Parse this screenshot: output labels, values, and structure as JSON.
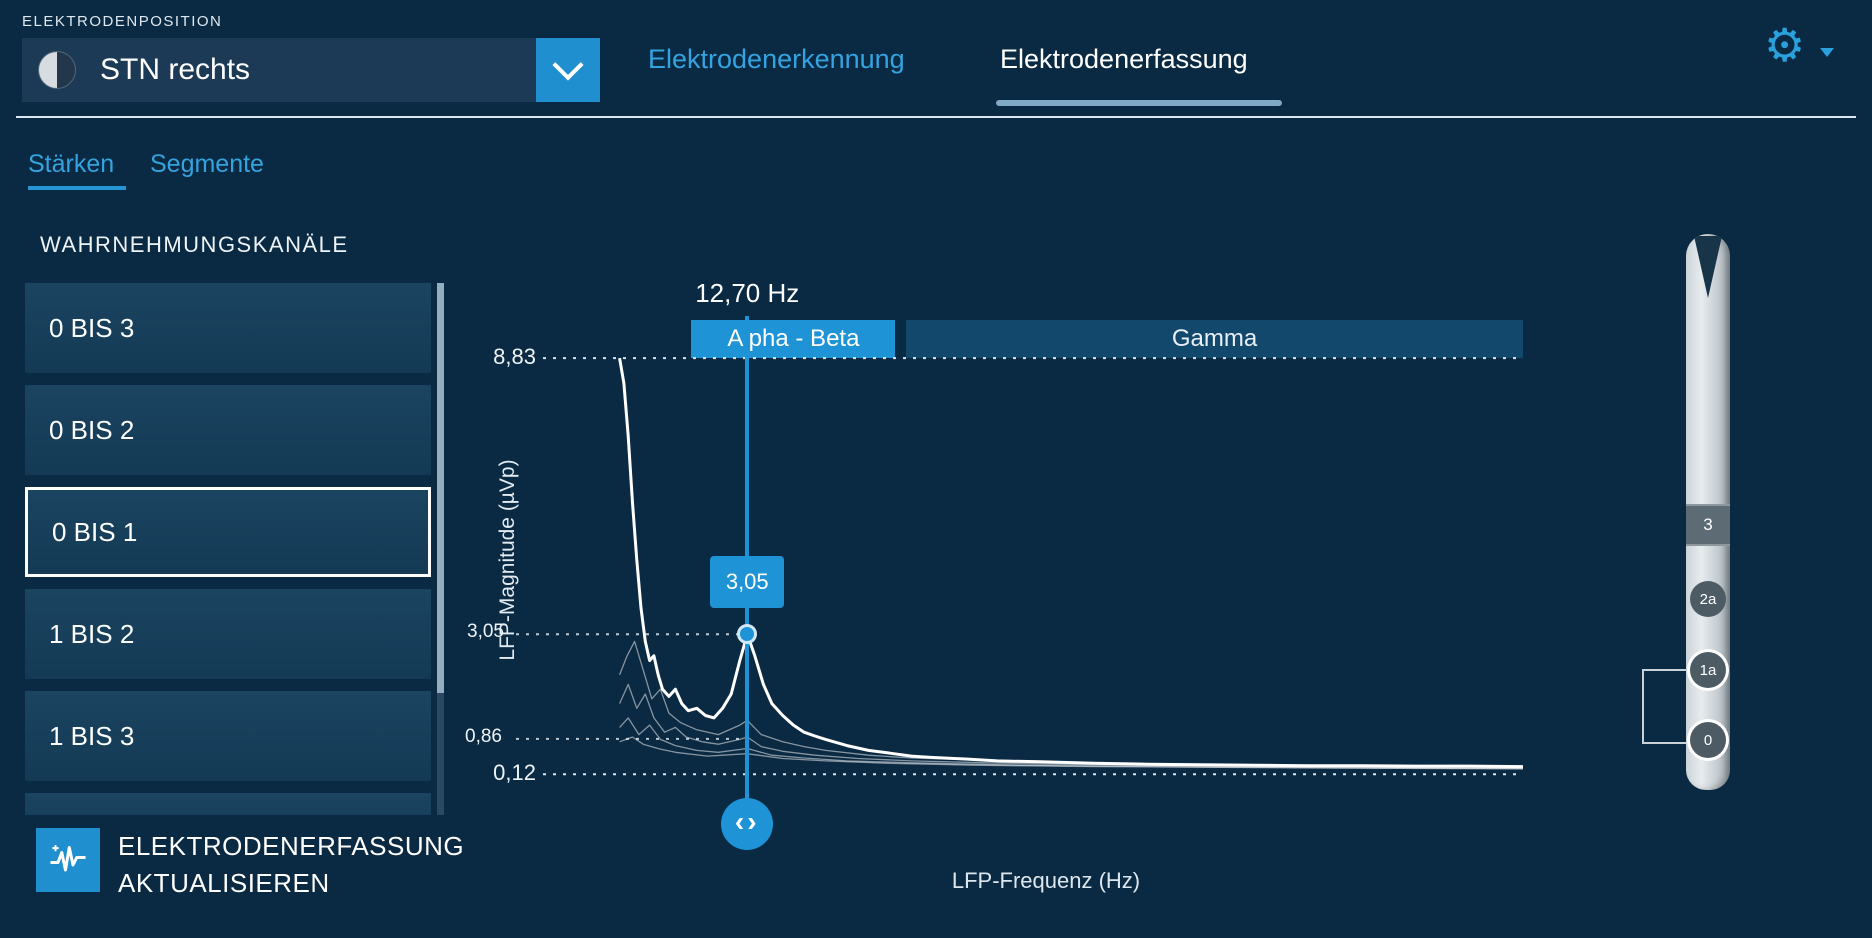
{
  "header": {
    "electrode_position_label": "ELEKTRODENPOSITION",
    "position_select": {
      "value": "STN rechts",
      "icon": "hemisphere-icon"
    },
    "tabs": [
      {
        "label": "Elektrodenerkennung",
        "active": false
      },
      {
        "label": "Elektrodenerfassung",
        "active": true
      }
    ],
    "settings_icon": "gear-icon"
  },
  "subtabs": [
    {
      "label": "Stärken",
      "active": true
    },
    {
      "label": "Segmente",
      "active": false
    }
  ],
  "sidebar": {
    "heading": "WAHRNEHMUNGSKANÄLE",
    "channels": [
      {
        "label": "0 BIS 3",
        "selected": false
      },
      {
        "label": "0 BIS 2",
        "selected": false
      },
      {
        "label": "0 BIS 1",
        "selected": true
      },
      {
        "label": "1 BIS 2",
        "selected": false
      },
      {
        "label": "1 BIS 3",
        "selected": false
      }
    ]
  },
  "update_button": {
    "icon": "waveform-icon",
    "line1": "ELEKTRODENERFASSUNG",
    "line2": "AKTUALISIEREN"
  },
  "chart_data": {
    "type": "line",
    "title": "",
    "xlabel": "LFP-Frequenz (Hz)",
    "ylabel": "LFP-Magnitude (µVp)",
    "x_range_hz": [
      0,
      85
    ],
    "ylim": [
      0,
      9.0
    ],
    "grid": "dashed-reference-lines",
    "y_ticks": [
      8.83,
      3.05,
      0.86,
      0.12
    ],
    "y_tick_labels": [
      "8,83",
      "3,05",
      "0,86",
      "0,12"
    ],
    "bands": [
      {
        "label": "Alpha - Beta",
        "from_hz": 7.5,
        "to_hz": 26.5,
        "style": "active",
        "color": "#1e93d6"
      },
      {
        "label": "Gamma",
        "from_hz": 27.5,
        "to_hz": 85,
        "style": "muted",
        "color": "#12486c"
      }
    ],
    "marker": {
      "hz": 12.7,
      "hz_label": "12,70 Hz",
      "value": 3.05,
      "value_label": "3,05"
    },
    "series": [
      {
        "name": "selected-channel-0-bis-1",
        "emphasis": "primary",
        "points": [
          [
            0.8,
            8.83
          ],
          [
            1.2,
            8.3
          ],
          [
            1.6,
            7.2
          ],
          [
            2.0,
            5.8
          ],
          [
            2.4,
            4.6
          ],
          [
            2.8,
            3.6
          ],
          [
            3.2,
            2.9
          ],
          [
            3.6,
            2.5
          ],
          [
            4.0,
            2.6
          ],
          [
            4.4,
            2.2
          ],
          [
            4.8,
            1.9
          ],
          [
            5.4,
            1.75
          ],
          [
            6.0,
            1.9
          ],
          [
            6.6,
            1.6
          ],
          [
            7.2,
            1.45
          ],
          [
            8.0,
            1.5
          ],
          [
            8.8,
            1.35
          ],
          [
            9.6,
            1.3
          ],
          [
            10.4,
            1.5
          ],
          [
            11.2,
            1.8
          ],
          [
            12.0,
            2.5
          ],
          [
            12.7,
            3.05
          ],
          [
            13.4,
            2.6
          ],
          [
            14.2,
            2.0
          ],
          [
            15.0,
            1.6
          ],
          [
            16,
            1.35
          ],
          [
            17,
            1.15
          ],
          [
            18,
            1.0
          ],
          [
            19,
            0.92
          ],
          [
            20,
            0.85
          ],
          [
            22,
            0.72
          ],
          [
            24,
            0.62
          ],
          [
            26,
            0.56
          ],
          [
            28,
            0.5
          ],
          [
            30,
            0.47
          ],
          [
            33,
            0.44
          ],
          [
            36,
            0.4
          ],
          [
            40,
            0.38
          ],
          [
            45,
            0.35
          ],
          [
            50,
            0.33
          ],
          [
            55,
            0.32
          ],
          [
            60,
            0.31
          ],
          [
            65,
            0.3
          ],
          [
            70,
            0.3
          ],
          [
            75,
            0.29
          ],
          [
            80,
            0.29
          ],
          [
            85,
            0.28
          ]
        ]
      },
      {
        "name": "channel-b",
        "emphasis": "secondary",
        "points": [
          [
            0.8,
            2.2
          ],
          [
            1.5,
            2.6
          ],
          [
            2.2,
            2.9
          ],
          [
            3.0,
            2.3
          ],
          [
            3.8,
            1.7
          ],
          [
            4.6,
            1.9
          ],
          [
            5.4,
            1.4
          ],
          [
            6.5,
            1.2
          ],
          [
            8,
            1.05
          ],
          [
            10,
            0.95
          ],
          [
            12,
            1.15
          ],
          [
            12.7,
            1.25
          ],
          [
            14,
            0.95
          ],
          [
            16,
            0.8
          ],
          [
            18,
            0.7
          ],
          [
            20,
            0.62
          ],
          [
            24,
            0.52
          ],
          [
            28,
            0.46
          ],
          [
            34,
            0.42
          ],
          [
            40,
            0.38
          ],
          [
            50,
            0.34
          ],
          [
            60,
            0.31
          ],
          [
            70,
            0.29
          ],
          [
            85,
            0.27
          ]
        ]
      },
      {
        "name": "channel-c",
        "emphasis": "secondary",
        "points": [
          [
            0.8,
            1.6
          ],
          [
            1.6,
            2.0
          ],
          [
            2.4,
            1.5
          ],
          [
            3.2,
            1.8
          ],
          [
            4.0,
            1.3
          ],
          [
            5,
            1.0
          ],
          [
            6,
            1.1
          ],
          [
            7,
            0.9
          ],
          [
            8.5,
            0.8
          ],
          [
            10,
            0.75
          ],
          [
            12,
            0.85
          ],
          [
            12.7,
            0.9
          ],
          [
            14,
            0.7
          ],
          [
            16,
            0.6
          ],
          [
            19,
            0.52
          ],
          [
            23,
            0.45
          ],
          [
            28,
            0.4
          ],
          [
            35,
            0.36
          ],
          [
            45,
            0.32
          ],
          [
            55,
            0.3
          ],
          [
            70,
            0.27
          ],
          [
            85,
            0.25
          ]
        ]
      },
      {
        "name": "channel-d",
        "emphasis": "secondary",
        "points": [
          [
            0.8,
            1.1
          ],
          [
            1.6,
            1.3
          ],
          [
            2.6,
            0.95
          ],
          [
            3.6,
            1.15
          ],
          [
            4.6,
            0.85
          ],
          [
            6,
            0.72
          ],
          [
            8,
            0.62
          ],
          [
            10,
            0.58
          ],
          [
            12.7,
            0.66
          ],
          [
            15,
            0.52
          ],
          [
            18,
            0.46
          ],
          [
            22,
            0.4
          ],
          [
            28,
            0.36
          ],
          [
            36,
            0.32
          ],
          [
            46,
            0.29
          ],
          [
            58,
            0.27
          ],
          [
            72,
            0.25
          ],
          [
            85,
            0.24
          ]
        ]
      },
      {
        "name": "channel-e",
        "emphasis": "secondary",
        "points": [
          [
            0.8,
            0.8
          ],
          [
            2,
            0.9
          ],
          [
            3,
            0.75
          ],
          [
            4.5,
            0.65
          ],
          [
            6,
            0.58
          ],
          [
            9,
            0.5
          ],
          [
            12.7,
            0.55
          ],
          [
            16,
            0.45
          ],
          [
            20,
            0.4
          ],
          [
            26,
            0.35
          ],
          [
            34,
            0.31
          ],
          [
            45,
            0.28
          ],
          [
            60,
            0.26
          ],
          [
            85,
            0.23
          ]
        ]
      }
    ]
  },
  "electrode": {
    "contacts": [
      {
        "label": "3",
        "shape": "band",
        "selected": false
      },
      {
        "label": "2a",
        "shape": "circle",
        "selected": false
      },
      {
        "label": "1a",
        "shape": "circle",
        "selected": true
      },
      {
        "label": "0",
        "shape": "circle",
        "selected": true
      }
    ]
  },
  "colors": {
    "accent": "#1e93d6",
    "background": "#0a2942",
    "tab_blue": "#35a3e0",
    "band_gamma": "#12486c",
    "divider": "#dce6ee"
  }
}
